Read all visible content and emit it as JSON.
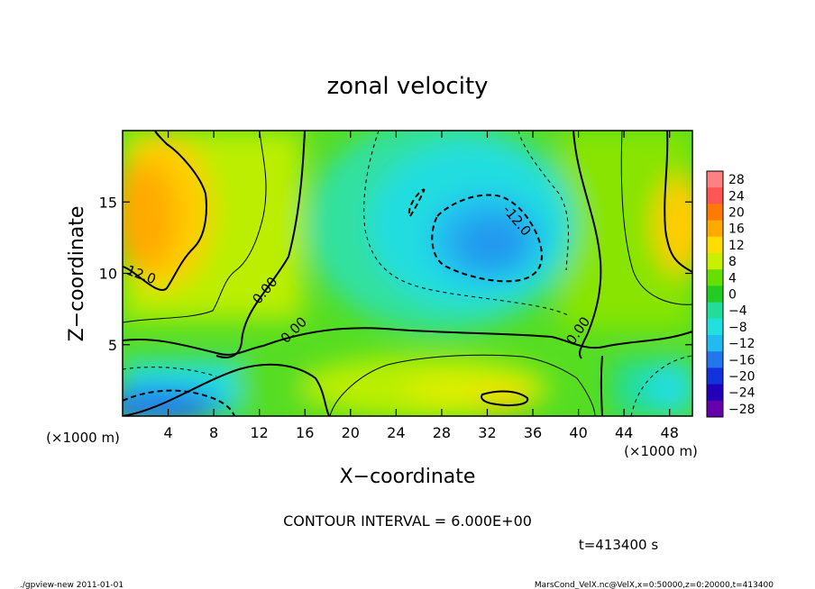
{
  "chart_data": {
    "type": "heatmap",
    "title": "zonal velocity",
    "xlabel": "X−coordinate",
    "ylabel": "Z−coordinate",
    "x_unit_left": "(×1000 m)",
    "x_unit_right": "(×1000 m)",
    "xlim": [
      0,
      50
    ],
    "ylim": [
      0,
      20
    ],
    "x_ticks": [
      4,
      8,
      12,
      16,
      20,
      24,
      28,
      32,
      36,
      40,
      44,
      48
    ],
    "y_ticks": [
      5,
      10,
      15
    ],
    "colorbar": {
      "labels": [
        "28",
        "24",
        "20",
        "16",
        "12",
        "8",
        "4",
        "0",
        "−4",
        "−8",
        "−12",
        "−16",
        "−20",
        "−24",
        "−28"
      ],
      "range": [
        -30,
        30
      ],
      "colors": [
        "#ff8080",
        "#ff5555",
        "#ff7a00",
        "#ffaa00",
        "#ffdd00",
        "#c8f000",
        "#66e000",
        "#22cc22",
        "#22dd99",
        "#22e0e0",
        "#22bbf0",
        "#2277ee",
        "#1133dd",
        "#2200bb",
        "#6600aa"
      ]
    },
    "contour_labels": [
      {
        "text": "12.0",
        "x": 1.5,
        "y": 9.6,
        "rot": 20
      },
      {
        "text": "0.00",
        "x": 12.8,
        "y": 8.6,
        "rot": -50
      },
      {
        "text": "0.00",
        "x": 15.3,
        "y": 5.8,
        "rot": -45
      },
      {
        "text": "-12.0",
        "x": 34.3,
        "y": 13.5,
        "rot": 50
      },
      {
        "text": "0.00",
        "x": 40.3,
        "y": 5.8,
        "rot": -55
      }
    ],
    "contour_interval_text": "CONTOUR INTERVAL = 6.000E+00",
    "time_text": "t=413400 s"
  },
  "footer": {
    "left": "./gpview-new  2011-01-01",
    "right": "MarsCond_VelX.nc@VelX,x=0:50000,z=0:20000,t=413400"
  }
}
